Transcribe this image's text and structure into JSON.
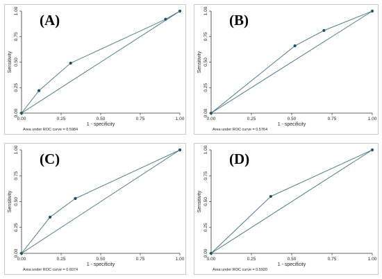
{
  "chart_data": [
    {
      "type": "line",
      "panel_label": "(A)",
      "xlabel": "1 - specificity",
      "ylabel": "Sensitivity",
      "xlim": [
        0,
        1
      ],
      "ylim": [
        0,
        1
      ],
      "xticks": [
        "0.00",
        "0.25",
        "0.50",
        "0.75",
        "1.00"
      ],
      "yticks": [
        "0.00",
        "0.25",
        "0.50",
        "0.75",
        "1.00"
      ],
      "annotation": "Area under ROC curve = 0.5984",
      "series": [
        {
          "x": [
            0,
            0.11,
            0.31,
            0.91,
            1
          ],
          "y": [
            0,
            0.22,
            0.49,
            0.92,
            1
          ],
          "markers": true
        },
        {
          "x": [
            0,
            1
          ],
          "y": [
            0,
            1
          ],
          "markers": false
        }
      ]
    },
    {
      "type": "line",
      "panel_label": "(B)",
      "xlabel": "1 - specificity",
      "ylabel": "Sensitivity",
      "xlim": [
        0,
        1
      ],
      "ylim": [
        0,
        1
      ],
      "xticks": [
        "0.00",
        "0.25",
        "0.50",
        "0.75",
        "1.00"
      ],
      "yticks": [
        "0.00",
        "0.25",
        "0.50",
        "0.75",
        "1.00"
      ],
      "annotation": "Area under ROC curve = 0.5764",
      "series": [
        {
          "x": [
            0,
            0.52,
            0.7,
            1
          ],
          "y": [
            0,
            0.66,
            0.81,
            1
          ],
          "markers": true
        },
        {
          "x": [
            0,
            1
          ],
          "y": [
            0,
            1
          ],
          "markers": false
        }
      ]
    },
    {
      "type": "line",
      "panel_label": "(C)",
      "xlabel": "1 - specificity",
      "ylabel": "Sensitivity",
      "xlim": [
        0,
        1
      ],
      "ylim": [
        0,
        1
      ],
      "xticks": [
        "0.00",
        "0.25",
        "0.50",
        "0.75",
        "1.00"
      ],
      "yticks": [
        "0.00",
        "0.25",
        "0.50",
        "0.75",
        "1.00"
      ],
      "annotation": "Area under ROC curve = 0.6074",
      "series": [
        {
          "x": [
            0,
            0.18,
            0.34,
            1
          ],
          "y": [
            0,
            0.35,
            0.53,
            1
          ],
          "markers": true
        },
        {
          "x": [
            0,
            1
          ],
          "y": [
            0,
            1
          ],
          "markers": false
        }
      ]
    },
    {
      "type": "line",
      "panel_label": "(D)",
      "xlabel": "1 - specificity",
      "ylabel": "Sensitivity",
      "xlim": [
        0,
        1
      ],
      "ylim": [
        0,
        1
      ],
      "xticks": [
        "0.00",
        "0.25",
        "0.50",
        "0.75",
        "1.00"
      ],
      "yticks": [
        "0.00",
        "0.25",
        "0.50",
        "0.75",
        "1.00"
      ],
      "annotation": "Area under ROC curve = 0.5920",
      "series": [
        {
          "x": [
            0,
            0.37,
            1
          ],
          "y": [
            0,
            0.55,
            1
          ],
          "markers": true
        },
        {
          "x": [
            0,
            1
          ],
          "y": [
            0,
            1
          ],
          "markers": false
        }
      ]
    }
  ],
  "colors": {
    "curve": "#3d6f7c",
    "marker": "#1f4f5a",
    "axis": "#333333"
  }
}
